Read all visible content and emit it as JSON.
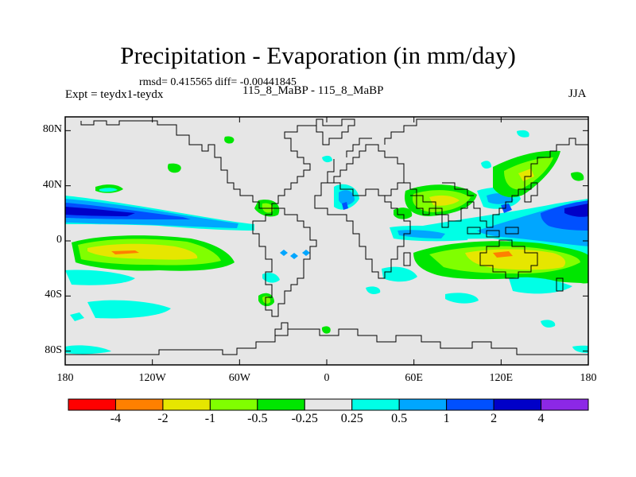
{
  "header": {
    "title": "Precipitation - Evaporation (in mm/day)",
    "stats": "rmsd= 0.415565 diff= -0.00441845",
    "experiment": "Expt = teydx1-teydx",
    "subtitle": "115_8_MaBP - 115_8_MaBP",
    "season": "JJA"
  },
  "map": {
    "projection": "cylindrical-equidistant",
    "lon_range": [
      -180,
      180
    ],
    "lat_range": [
      -90,
      90
    ],
    "background_color": "#e6e6e6",
    "lat_ticks": [
      {
        "lat": 80,
        "label": "80N"
      },
      {
        "lat": 40,
        "label": "40N"
      },
      {
        "lat": 0,
        "label": "0"
      },
      {
        "lat": -40,
        "label": "40S"
      },
      {
        "lat": -80,
        "label": "80S"
      }
    ],
    "lon_ticks": [
      {
        "lon": -180,
        "label": "180"
      },
      {
        "lon": -120,
        "label": "120W"
      },
      {
        "lon": -60,
        "label": "60W"
      },
      {
        "lon": 0,
        "label": "0"
      },
      {
        "lon": 60,
        "label": "60E"
      },
      {
        "lon": 120,
        "label": "120E"
      },
      {
        "lon": 180,
        "label": "180"
      }
    ]
  },
  "colorbar": {
    "colors": [
      "#ff0000",
      "#ff8000",
      "#e6e600",
      "#80ff00",
      "#00e600",
      "#e6e6e6",
      "#00ffe6",
      "#00a6ff",
      "#0050ff",
      "#0000c8",
      "#8c28e6"
    ],
    "labels": [
      "-4",
      "-2",
      "-1",
      "-0.5",
      "-0.25",
      "0.25",
      "0.5",
      "1",
      "2",
      "4"
    ]
  }
}
